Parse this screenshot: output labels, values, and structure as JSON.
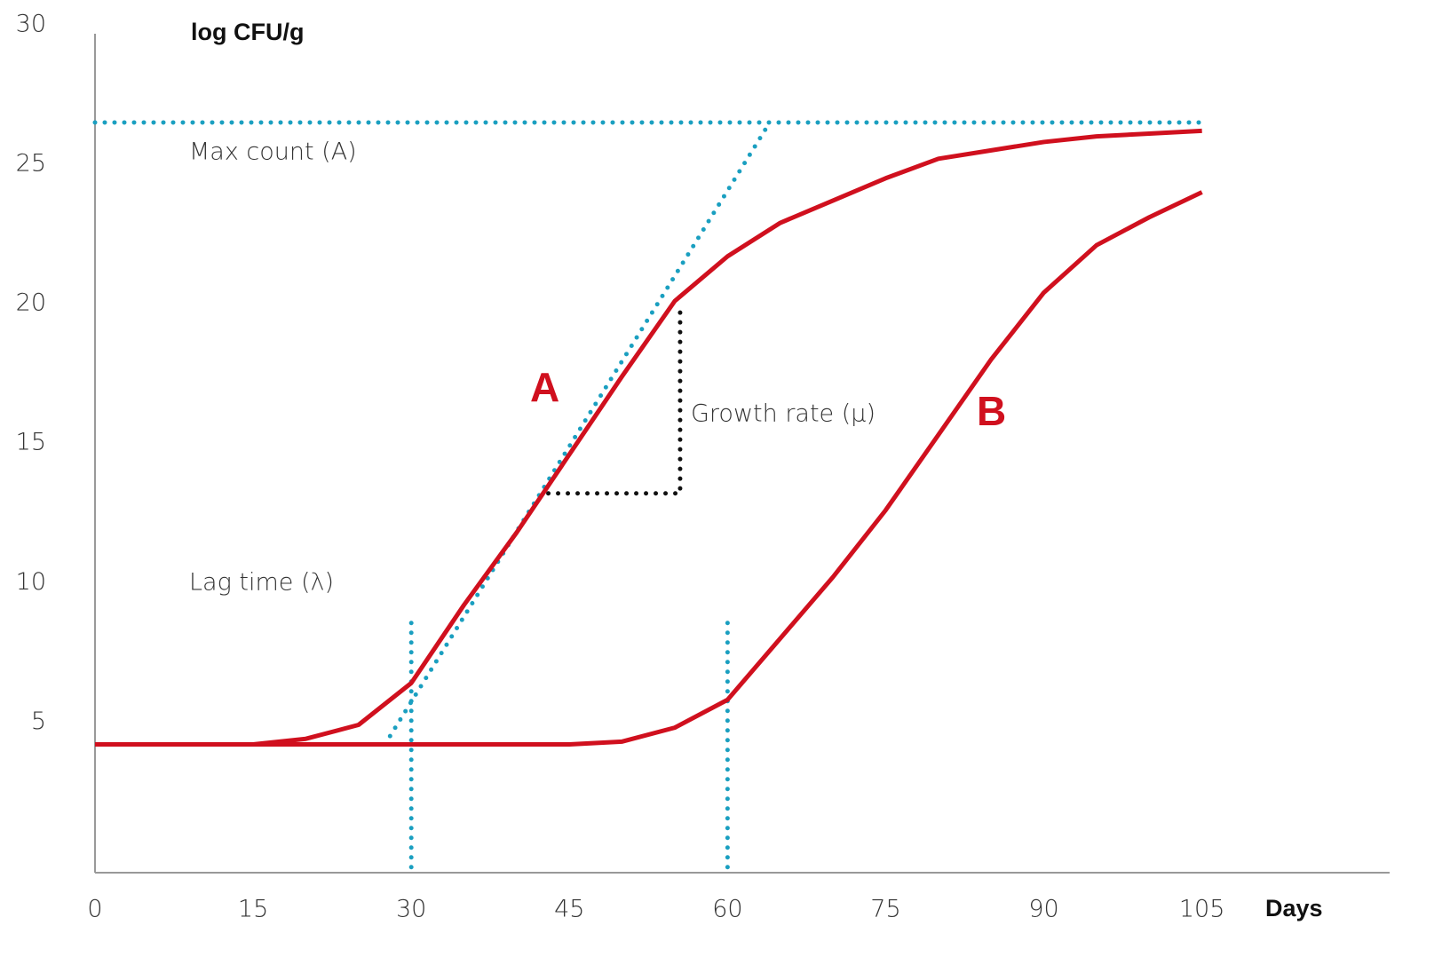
{
  "chart_data": {
    "type": "line",
    "y_label": "log CFU/g",
    "x_label": "Days",
    "x": [
      0,
      5,
      10,
      15,
      20,
      25,
      30,
      35,
      40,
      45,
      50,
      55,
      60,
      65,
      70,
      75,
      80,
      85,
      90,
      95,
      100,
      105
    ],
    "series": [
      {
        "name": "A",
        "color": "#d0101e",
        "values": [
          4.2,
          4.2,
          4.2,
          4.2,
          4.4,
          4.9,
          6.4,
          9.2,
          11.8,
          14.6,
          17.4,
          20.1,
          21.7,
          22.9,
          23.7,
          24.5,
          25.2,
          25.5,
          25.8,
          26.0,
          26.1,
          26.2
        ]
      },
      {
        "name": "B",
        "color": "#d0101e",
        "values": [
          4.2,
          4.2,
          4.2,
          4.2,
          4.2,
          4.2,
          4.2,
          4.2,
          4.2,
          4.2,
          4.3,
          4.8,
          5.8,
          8.0,
          10.2,
          12.6,
          15.3,
          18.0,
          20.4,
          22.1,
          23.1,
          24.0
        ]
      }
    ],
    "guides": [
      {
        "color": "#1a9fc0",
        "x": [
          0,
          105
        ],
        "y": [
          26.5,
          26.5
        ]
      },
      {
        "color": "#1a9fc0",
        "x": [
          27.5,
          64
        ],
        "y": [
          4.2,
          26.5
        ]
      },
      {
        "color": "#1a9fc0",
        "x": [
          30,
          30
        ],
        "y": [
          -0.2,
          8.9
        ]
      },
      {
        "color": "#1a9fc0",
        "x": [
          60,
          60
        ],
        "y": [
          -0.2,
          8.9
        ]
      },
      {
        "color": "#111111",
        "x": [
          43,
          55.5,
          55.5
        ],
        "y": [
          13.2,
          13.2,
          20.0
        ]
      }
    ],
    "annotations": [
      "Max count (A)",
      "Lag time (λ)",
      "Growth rate (μ)"
    ],
    "xlim": [
      0,
      122.8
    ],
    "ylim": [
      -0.4,
      30
    ],
    "xticks": [
      0,
      15,
      30,
      45,
      60,
      75,
      90,
      105
    ],
    "yticks": [
      5,
      10,
      15,
      20,
      25,
      30
    ]
  }
}
